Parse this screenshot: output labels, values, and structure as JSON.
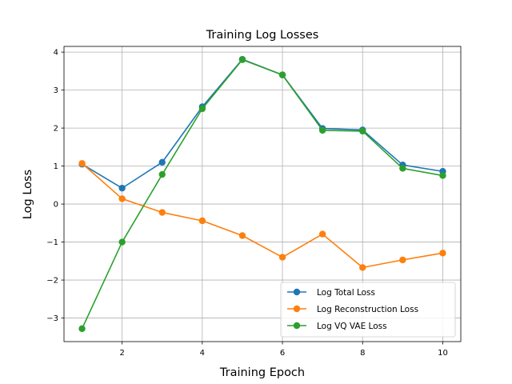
{
  "chart_data": {
    "type": "line",
    "title": "Training Log Losses",
    "xlabel": "Training Epoch",
    "ylabel": "Log Loss",
    "x": [
      1,
      2,
      3,
      4,
      5,
      6,
      7,
      8,
      9,
      10
    ],
    "xlim": [
      0.55,
      10.45
    ],
    "ylim": [
      -3.62,
      4.15
    ],
    "xticks": [
      2,
      4,
      6,
      8,
      10
    ],
    "yticks": [
      -3,
      -2,
      -1,
      0,
      1,
      2,
      3,
      4
    ],
    "ytick_labels": [
      "−3",
      "−2",
      "−1",
      "0",
      "1",
      "2",
      "3",
      "4"
    ],
    "grid": true,
    "legend_position": "lower-right",
    "series": [
      {
        "name": "Log Total Loss",
        "color": "#1f77b4",
        "values": [
          1.05,
          0.42,
          1.1,
          2.56,
          3.81,
          3.4,
          1.99,
          1.95,
          1.03,
          0.86
        ]
      },
      {
        "name": "Log Reconstruction Loss",
        "color": "#ff7f0e",
        "values": [
          1.07,
          0.14,
          -0.22,
          -0.44,
          -0.83,
          -1.4,
          -0.79,
          -1.67,
          -1.47,
          -1.29
        ]
      },
      {
        "name": "Log VQ VAE Loss",
        "color": "#2ca02c",
        "values": [
          -3.28,
          -1.0,
          0.78,
          2.51,
          3.8,
          3.4,
          1.94,
          1.92,
          0.94,
          0.75
        ]
      }
    ]
  }
}
